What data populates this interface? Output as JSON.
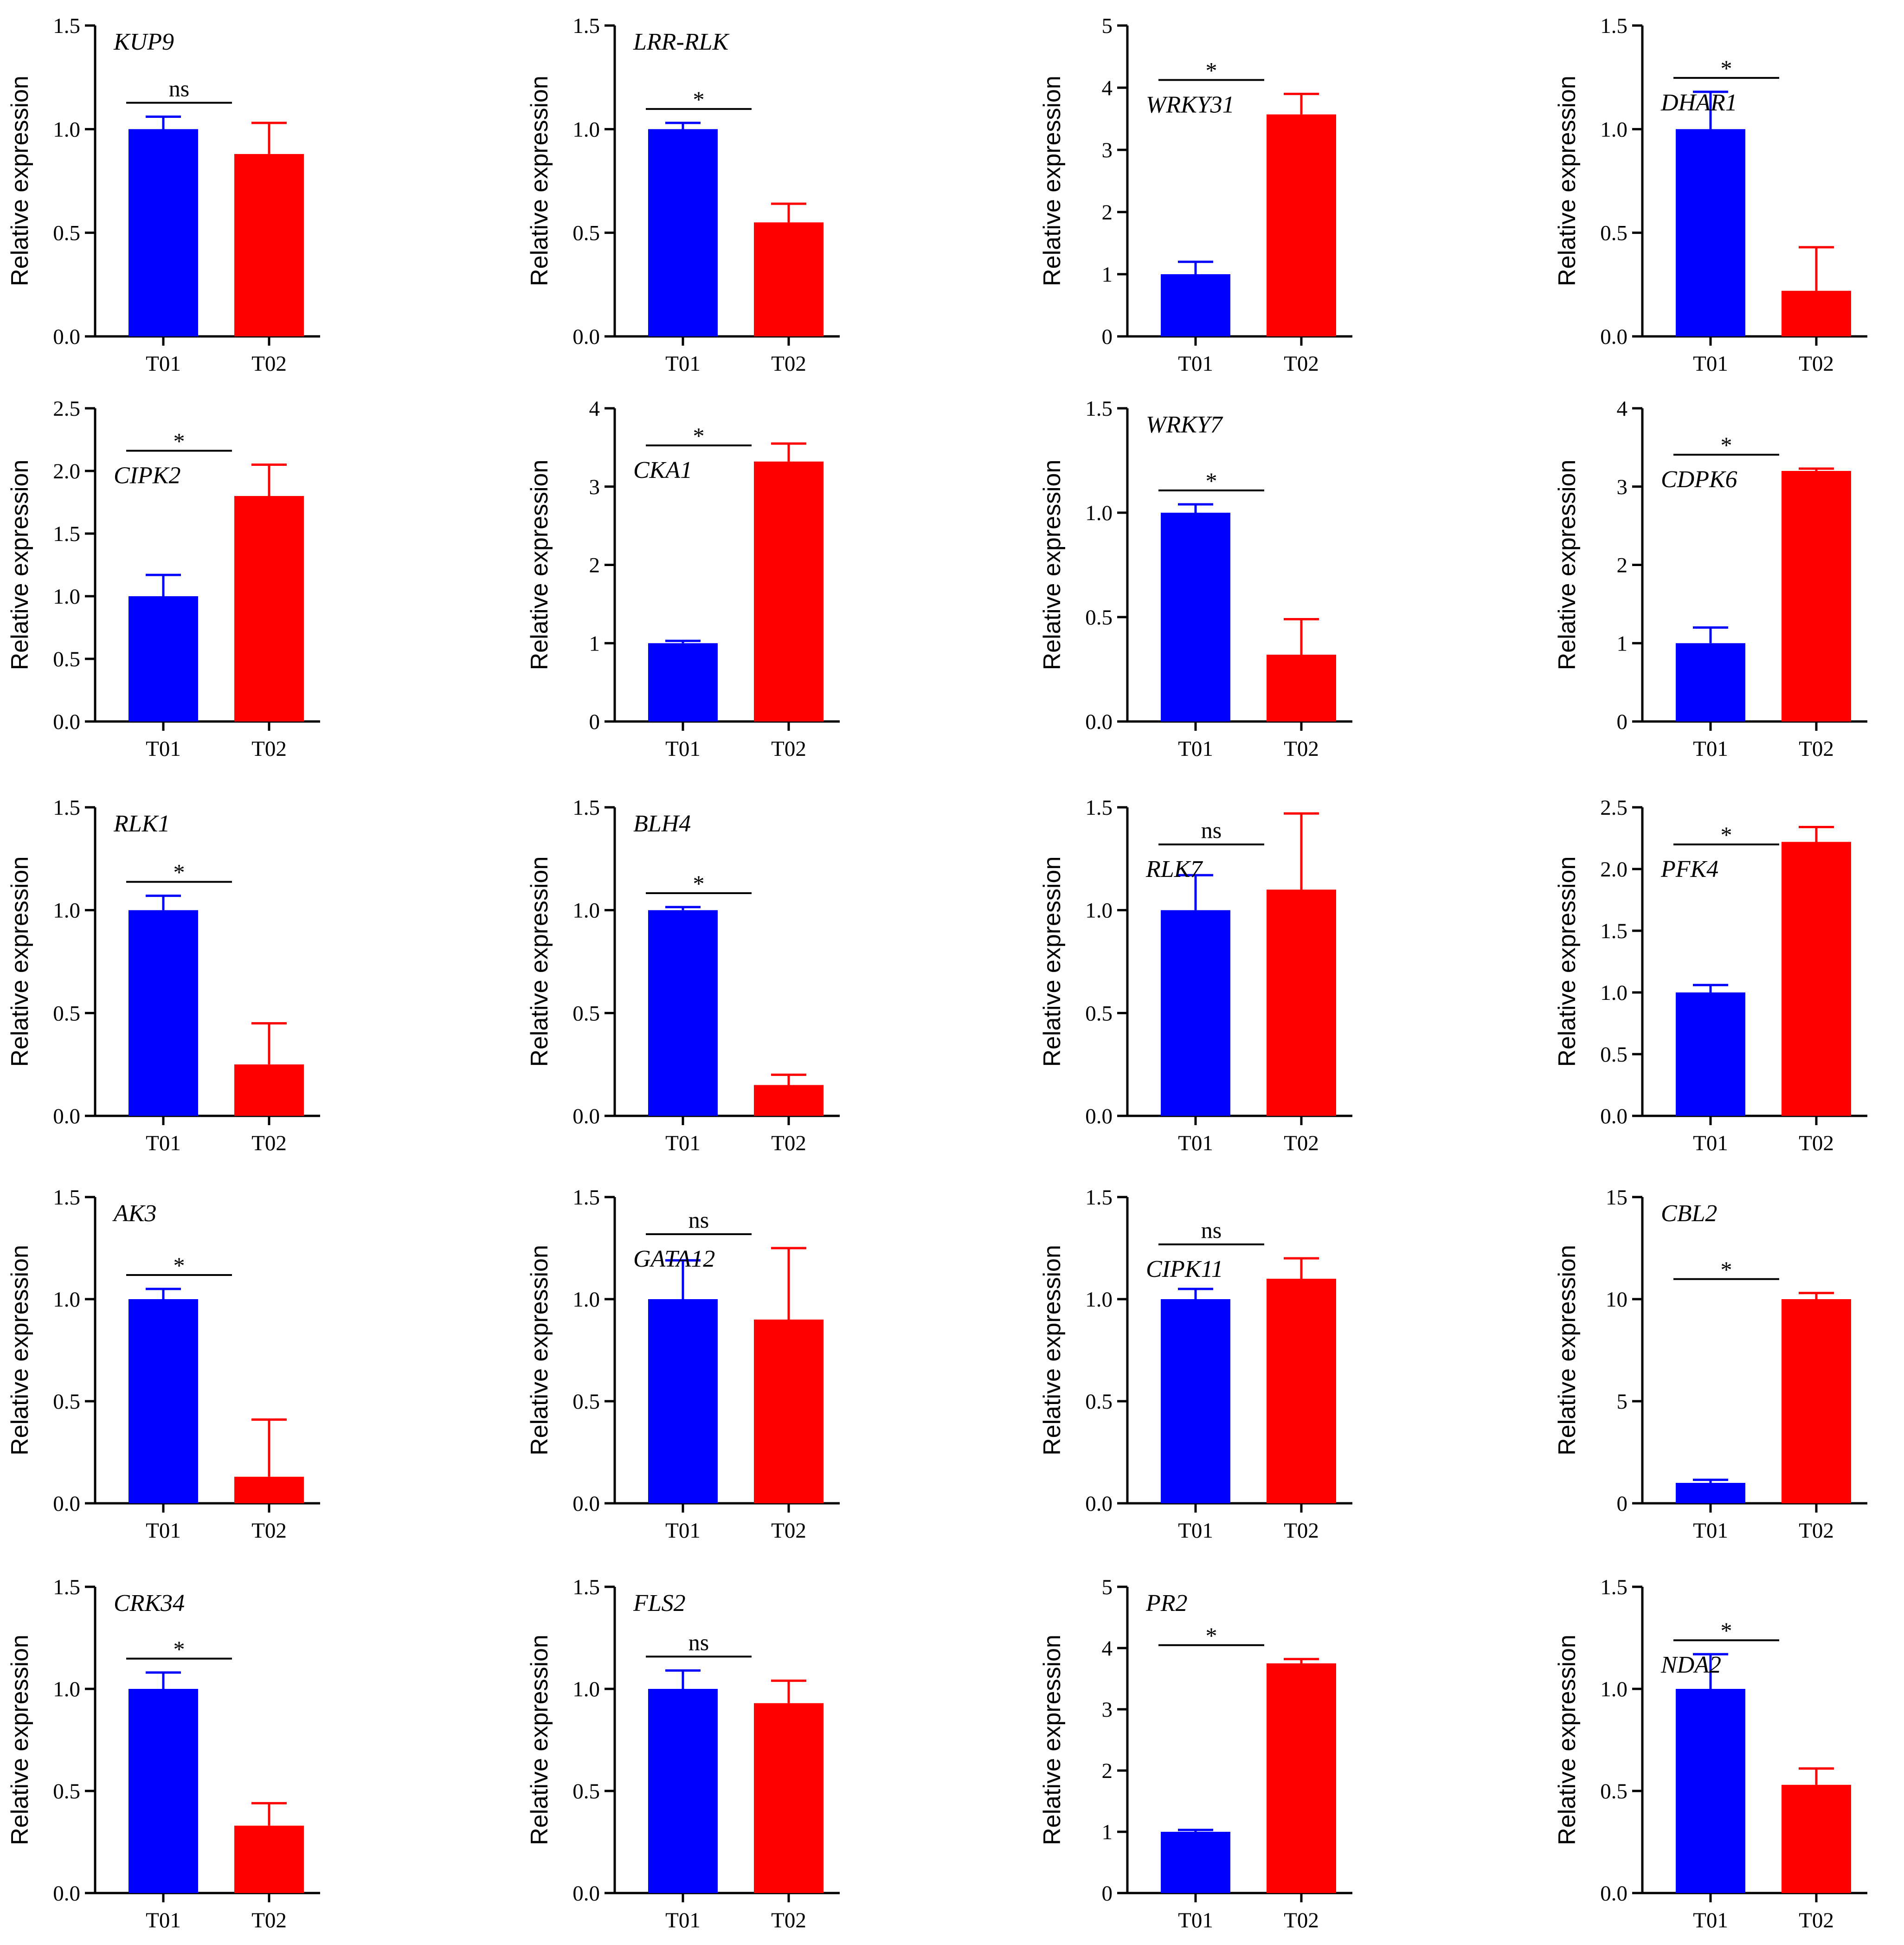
{
  "colors": {
    "T01": "#0000ff",
    "T02": "#ff0000",
    "axis": "#000000"
  },
  "chart_data": [
    {
      "type": "bar",
      "title": "KUP9",
      "ylabel": "Relative expression",
      "categories": [
        "T01",
        "T02"
      ],
      "values": [
        1.0,
        0.88
      ],
      "errors": [
        0.06,
        0.15
      ],
      "ylim": [
        0,
        1.5
      ],
      "yticks": [
        "0.0",
        "0.5",
        "1.0",
        "1.5"
      ],
      "significance": "ns"
    },
    {
      "type": "bar",
      "title": "LRR-RLK",
      "ylabel": "Relative expression",
      "categories": [
        "T01",
        "T02"
      ],
      "values": [
        1.0,
        0.55
      ],
      "errors": [
        0.03,
        0.09
      ],
      "ylim": [
        0,
        1.5
      ],
      "yticks": [
        "0.0",
        "0.5",
        "1.0",
        "1.5"
      ],
      "significance": "*"
    },
    {
      "type": "bar",
      "title": "WRKY31",
      "ylabel": "Relative expression",
      "categories": [
        "T01",
        "T02"
      ],
      "values": [
        1.0,
        3.57
      ],
      "errors": [
        0.2,
        0.33
      ],
      "ylim": [
        0,
        5
      ],
      "yticks": [
        "0",
        "1",
        "2",
        "3",
        "4",
        "5"
      ],
      "significance": "*"
    },
    {
      "type": "bar",
      "title": "DHAR1",
      "ylabel": "Relative expression",
      "categories": [
        "T01",
        "T02"
      ],
      "values": [
        1.0,
        0.22
      ],
      "errors": [
        0.18,
        0.21
      ],
      "ylim": [
        0,
        1.5
      ],
      "yticks": [
        "0.0",
        "0.5",
        "1.0",
        "1.5"
      ],
      "significance": "*"
    },
    {
      "type": "bar",
      "title": "CIPK2",
      "ylabel": "Relative expression",
      "categories": [
        "T01",
        "T02"
      ],
      "values": [
        1.0,
        1.8
      ],
      "errors": [
        0.17,
        0.25
      ],
      "ylim": [
        0,
        2.5
      ],
      "yticks": [
        "0.0",
        "0.5",
        "1.0",
        "1.5",
        "2.0",
        "2.5"
      ],
      "significance": "*"
    },
    {
      "type": "bar",
      "title": "CKA1",
      "ylabel": "Relative expression",
      "categories": [
        "T01",
        "T02"
      ],
      "values": [
        1.0,
        3.32
      ],
      "errors": [
        0.03,
        0.23
      ],
      "ylim": [
        0,
        4
      ],
      "yticks": [
        "0",
        "1",
        "2",
        "3",
        "4"
      ],
      "significance": "*"
    },
    {
      "type": "bar",
      "title": "WRKY7",
      "ylabel": "Relative expression",
      "categories": [
        "T01",
        "T02"
      ],
      "values": [
        1.0,
        0.32
      ],
      "errors": [
        0.04,
        0.17
      ],
      "ylim": [
        0,
        1.5
      ],
      "yticks": [
        "0.0",
        "0.5",
        "1.0",
        "1.5"
      ],
      "significance": "*"
    },
    {
      "type": "bar",
      "title": "CDPK6",
      "ylabel": "Relative expression",
      "categories": [
        "T01",
        "T02"
      ],
      "values": [
        1.0,
        3.2
      ],
      "errors": [
        0.2,
        0.03
      ],
      "ylim": [
        0,
        4
      ],
      "yticks": [
        "0",
        "1",
        "2",
        "3",
        "4"
      ],
      "significance": "*"
    },
    {
      "type": "bar",
      "title": "RLK1",
      "ylabel": "Relative expression",
      "categories": [
        "T01",
        "T02"
      ],
      "values": [
        1.0,
        0.25
      ],
      "errors": [
        0.07,
        0.2
      ],
      "ylim": [
        0,
        1.5
      ],
      "yticks": [
        "0.0",
        "0.5",
        "1.0",
        "1.5"
      ],
      "significance": "*"
    },
    {
      "type": "bar",
      "title": "BLH4",
      "ylabel": "Relative expression",
      "categories": [
        "T01",
        "T02"
      ],
      "values": [
        1.0,
        0.15
      ],
      "errors": [
        0.015,
        0.05
      ],
      "ylim": [
        0,
        1.5
      ],
      "yticks": [
        "0.0",
        "0.5",
        "1.0",
        "1.5"
      ],
      "significance": "*"
    },
    {
      "type": "bar",
      "title": "RLK7",
      "ylabel": "Relative expression",
      "categories": [
        "T01",
        "T02"
      ],
      "values": [
        1.0,
        1.1
      ],
      "errors": [
        0.17,
        0.37
      ],
      "ylim": [
        0,
        1.5
      ],
      "yticks": [
        "0.0",
        "0.5",
        "1.0",
        "1.5"
      ],
      "significance": "ns"
    },
    {
      "type": "bar",
      "title": "PFK4",
      "ylabel": "Relative expression",
      "categories": [
        "T01",
        "T02"
      ],
      "values": [
        1.0,
        2.22
      ],
      "errors": [
        0.06,
        0.12
      ],
      "ylim": [
        0,
        2.5
      ],
      "yticks": [
        "0.0",
        "0.5",
        "1.0",
        "1.5",
        "2.0",
        "2.5"
      ],
      "significance": "*"
    },
    {
      "type": "bar",
      "title": "AK3",
      "ylabel": "Relative expression",
      "categories": [
        "T01",
        "T02"
      ],
      "values": [
        1.0,
        0.13
      ],
      "errors": [
        0.05,
        0.28
      ],
      "ylim": [
        0,
        1.5
      ],
      "yticks": [
        "0.0",
        "0.5",
        "1.0",
        "1.5"
      ],
      "significance": "*"
    },
    {
      "type": "bar",
      "title": "GATA12",
      "ylabel": "Relative expression",
      "categories": [
        "T01",
        "T02"
      ],
      "values": [
        1.0,
        0.9
      ],
      "errors": [
        0.19,
        0.35
      ],
      "ylim": [
        0,
        1.5
      ],
      "yticks": [
        "0.0",
        "0.5",
        "1.0",
        "1.5"
      ],
      "significance": "ns"
    },
    {
      "type": "bar",
      "title": "CIPK11",
      "ylabel": "Relative expression",
      "categories": [
        "T01",
        "T02"
      ],
      "values": [
        1.0,
        1.1
      ],
      "errors": [
        0.05,
        0.1
      ],
      "ylim": [
        0,
        1.5
      ],
      "yticks": [
        "0.0",
        "0.5",
        "1.0",
        "1.5"
      ],
      "significance": "ns"
    },
    {
      "type": "bar",
      "title": "CBL2",
      "ylabel": "Relative expression",
      "categories": [
        "T01",
        "T02"
      ],
      "values": [
        1.0,
        10.0
      ],
      "errors": [
        0.15,
        0.3
      ],
      "ylim": [
        0,
        15
      ],
      "yticks": [
        "0",
        "5",
        "10",
        "15"
      ],
      "significance": "*"
    },
    {
      "type": "bar",
      "title": "CRK34",
      "ylabel": "Relative expression",
      "categories": [
        "T01",
        "T02"
      ],
      "values": [
        1.0,
        0.33
      ],
      "errors": [
        0.08,
        0.11
      ],
      "ylim": [
        0,
        1.5
      ],
      "yticks": [
        "0.0",
        "0.5",
        "1.0",
        "1.5"
      ],
      "significance": "*"
    },
    {
      "type": "bar",
      "title": "FLS2",
      "ylabel": "Relative expression",
      "categories": [
        "T01",
        "T02"
      ],
      "values": [
        1.0,
        0.93
      ],
      "errors": [
        0.09,
        0.11
      ],
      "ylim": [
        0,
        1.5
      ],
      "yticks": [
        "0.0",
        "0.5",
        "1.0",
        "1.5"
      ],
      "significance": "ns"
    },
    {
      "type": "bar",
      "title": "PR2",
      "ylabel": "Relative expression",
      "categories": [
        "T01",
        "T02"
      ],
      "values": [
        1.0,
        3.75
      ],
      "errors": [
        0.03,
        0.07
      ],
      "ylim": [
        0,
        5
      ],
      "yticks": [
        "0",
        "1",
        "2",
        "3",
        "4",
        "5"
      ],
      "significance": "*"
    },
    {
      "type": "bar",
      "title": "NDA2",
      "ylabel": "Relative expression",
      "categories": [
        "T01",
        "T02"
      ],
      "values": [
        1.0,
        0.53
      ],
      "errors": [
        0.17,
        0.08
      ],
      "ylim": [
        0,
        1.5
      ],
      "yticks": [
        "0.0",
        "0.5",
        "1.0",
        "1.5"
      ],
      "significance": "*"
    }
  ]
}
